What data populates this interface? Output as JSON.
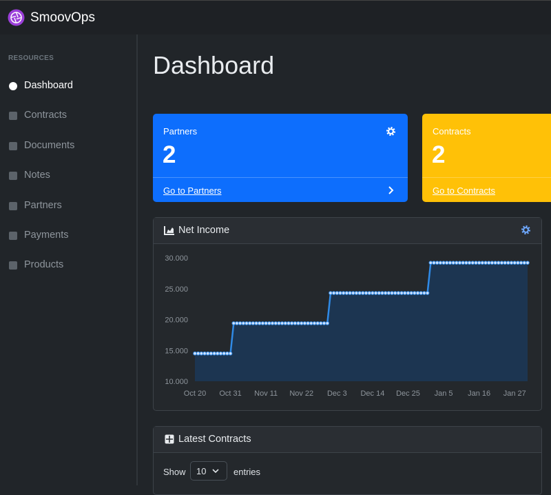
{
  "header": {
    "brand": "SmoovOps"
  },
  "sidebar": {
    "section": "RESOURCES",
    "items": [
      "Dashboard",
      "Contracts",
      "Documents",
      "Notes",
      "Partners",
      "Payments",
      "Products"
    ]
  },
  "page": {
    "title": "Dashboard"
  },
  "cards": [
    {
      "label": "Partners",
      "value": 2,
      "link": "Go to Partners",
      "color": "#0d6efd"
    },
    {
      "label": "Contracts",
      "value": 2,
      "link": "Go to Contracts",
      "color": "#ffc107"
    }
  ],
  "chart_data": {
    "type": "line",
    "title": "Net Income",
    "color": "#2f8ae6",
    "area_color": "#1c3551",
    "markers": true,
    "x": [
      "Oct 20",
      "Oct 21",
      "Oct 22",
      "Oct 23",
      "Oct 24",
      "Oct 25",
      "Oct 26",
      "Oct 27",
      "Oct 28",
      "Oct 29",
      "Oct 30",
      "Oct 31",
      "Nov 1",
      "Nov 2",
      "Nov 3",
      "Nov 4",
      "Nov 5",
      "Nov 6",
      "Nov 7",
      "Nov 8",
      "Nov 9",
      "Nov 10",
      "Nov 11",
      "Nov 12",
      "Nov 13",
      "Nov 14",
      "Nov 15",
      "Nov 16",
      "Nov 17",
      "Nov 18",
      "Nov 19",
      "Nov 20",
      "Nov 21",
      "Nov 22",
      "Nov 23",
      "Nov 24",
      "Nov 25",
      "Nov 26",
      "Nov 27",
      "Nov 28",
      "Nov 29",
      "Nov 30",
      "Dec 1",
      "Dec 2",
      "Dec 3",
      "Dec 4",
      "Dec 5",
      "Dec 6",
      "Dec 7",
      "Dec 8",
      "Dec 9",
      "Dec 10",
      "Dec 11",
      "Dec 12",
      "Dec 13",
      "Dec 14",
      "Dec 15",
      "Dec 16",
      "Dec 17",
      "Dec 18",
      "Dec 19",
      "Dec 20",
      "Dec 21",
      "Dec 22",
      "Dec 23",
      "Dec 24",
      "Dec 25",
      "Dec 26",
      "Dec 27",
      "Dec 28",
      "Dec 29",
      "Dec 30",
      "Dec 31",
      "Jan 1",
      "Jan 2",
      "Jan 3",
      "Jan 4",
      "Jan 5",
      "Jan 6",
      "Jan 7",
      "Jan 8",
      "Jan 9",
      "Jan 10",
      "Jan 11",
      "Jan 12",
      "Jan 13",
      "Jan 14",
      "Jan 15",
      "Jan 16",
      "Jan 17",
      "Jan 18",
      "Jan 19",
      "Jan 20",
      "Jan 21",
      "Jan 22",
      "Jan 23",
      "Jan 24",
      "Jan 25",
      "Jan 26",
      "Jan 27",
      "Jan 28",
      "Jan 29",
      "Jan 30",
      "Jan 31"
    ],
    "values": [
      14500,
      14500,
      14500,
      14500,
      14500,
      14500,
      14500,
      14500,
      14500,
      14500,
      14500,
      14500,
      19400,
      19400,
      19400,
      19400,
      19400,
      19400,
      19400,
      19400,
      19400,
      19400,
      19400,
      19400,
      19400,
      19400,
      19400,
      19400,
      19400,
      19400,
      19400,
      19400,
      19400,
      19400,
      19400,
      19400,
      19400,
      19400,
      19400,
      19400,
      19400,
      19400,
      24300,
      24300,
      24300,
      24300,
      24300,
      24300,
      24300,
      24300,
      24300,
      24300,
      24300,
      24300,
      24300,
      24300,
      24300,
      24300,
      24300,
      24300,
      24300,
      24300,
      24300,
      24300,
      24300,
      24300,
      24300,
      24300,
      24300,
      24300,
      24300,
      24300,
      24300,
      29200,
      29200,
      29200,
      29200,
      29200,
      29200,
      29200,
      29200,
      29200,
      29200,
      29200,
      29200,
      29200,
      29200,
      29200,
      29200,
      29200,
      29200,
      29200,
      29200,
      29200,
      29200,
      29200,
      29200,
      29200,
      29200,
      29200,
      29200,
      29200,
      29200,
      29200
    ],
    "xticks": [
      "Oct 20",
      "Oct 31",
      "Nov 11",
      "Nov 22",
      "Dec 3",
      "Dec 14",
      "Dec 25",
      "Jan 5",
      "Jan 16",
      "Jan 27"
    ],
    "ylim": [
      10000,
      30000
    ],
    "yticks": [
      {
        "value": 10000,
        "label": "10.000"
      },
      {
        "value": 15000,
        "label": "15.000"
      },
      {
        "value": 20000,
        "label": "20.000"
      },
      {
        "value": 25000,
        "label": "25.000"
      },
      {
        "value": 30000,
        "label": "30.000"
      }
    ]
  },
  "table": {
    "title": "Latest Contracts",
    "show": "Show",
    "length": 10,
    "entries": "entries"
  }
}
